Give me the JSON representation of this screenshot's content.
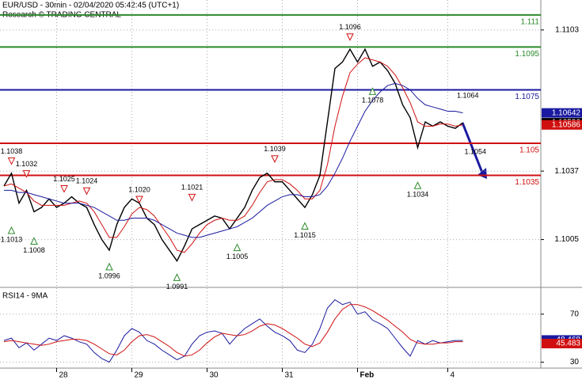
{
  "chart_data": [
    {
      "type": "line",
      "title": "EUR/USD - 30min - 02/04/2020 05:42:45 (UTC+1)",
      "subtitle": "Research © TRADING CENTRAL",
      "categories": [
        null,
        null,
        null,
        null,
        null,
        null,
        null,
        "28",
        null,
        null,
        null,
        null,
        null,
        null,
        null,
        null,
        null,
        "29",
        null,
        null,
        null,
        null,
        null,
        null,
        null,
        null,
        null,
        "30",
        null,
        null,
        null,
        null,
        null,
        null,
        null,
        null,
        null,
        "31",
        null,
        null,
        null,
        null,
        null,
        null,
        null,
        null,
        null,
        "Feb",
        null,
        null,
        null,
        null,
        null,
        null,
        null,
        null,
        null,
        null,
        null,
        "4",
        null,
        null
      ],
      "series": [
        {
          "color": "#000000",
          "last": 1.10596,
          "values": [
            1.103,
            1.1036,
            1.1022,
            1.1028,
            1.1018,
            1.102,
            1.1024,
            1.102,
            1.1022,
            1.1025,
            1.1022,
            1.102,
            1.1012,
            1.1005,
            1.1,
            1.1012,
            1.102,
            1.1024,
            1.1022,
            1.1015,
            1.1012,
            1.1005,
            1.1,
            1.0995,
            1.1002,
            1.101,
            1.1012,
            1.1014,
            1.1016,
            1.1015,
            1.101,
            1.1015,
            1.102,
            1.1028,
            1.1034,
            1.1036,
            1.1032,
            1.1032,
            1.1028,
            1.1024,
            1.102,
            1.1026,
            1.1035,
            1.106,
            1.1085,
            1.1088,
            1.1094,
            1.1088,
            1.1094,
            1.1086,
            1.1088,
            1.1084,
            1.1078,
            1.1068,
            1.1062,
            1.1048,
            1.106,
            1.1058,
            1.106,
            1.1058,
            1.1057,
            1.10596
          ]
        },
        {
          "color": "#d01010",
          "last": 1.10586,
          "values": [
            1.103,
            1.1031,
            1.1029,
            1.1027,
            1.1023,
            1.1021,
            1.1021,
            1.1021,
            1.1021,
            1.1022,
            1.1023,
            1.1022,
            1.1018,
            1.1012,
            1.1006,
            1.1006,
            1.1011,
            1.1017,
            1.102,
            1.1019,
            1.1016,
            1.1011,
            1.1006,
            1.1,
            1.0999,
            1.1003,
            1.1008,
            1.1012,
            1.1014,
            1.1015,
            1.1014,
            1.1014,
            1.1016,
            1.1021,
            1.1027,
            1.1032,
            1.1033,
            1.1033,
            1.1031,
            1.1028,
            1.1024,
            1.1024,
            1.1028,
            1.104,
            1.1058,
            1.1072,
            1.1083,
            1.1087,
            1.109,
            1.1089,
            1.1088,
            1.1086,
            1.1082,
            1.1076,
            1.1069,
            1.106,
            1.1058,
            1.1058,
            1.1059,
            1.1059,
            1.1058,
            1.10586
          ]
        },
        {
          "color": "#1a1aa0",
          "last": 1.10642,
          "values": [
            1.1028,
            1.1028,
            1.1027,
            1.1027,
            1.1026,
            1.1025,
            1.1024,
            1.1023,
            1.1022,
            1.1022,
            1.1022,
            1.1021,
            1.102,
            1.1018,
            1.1016,
            1.1014,
            1.1014,
            1.1015,
            1.1015,
            1.1015,
            1.1014,
            1.1012,
            1.101,
            1.1008,
            1.1007,
            1.1006,
            1.1006,
            1.1007,
            1.1008,
            1.1009,
            1.101,
            1.1011,
            1.1013,
            1.1015,
            1.1018,
            1.1021,
            1.1023,
            1.1025,
            1.1026,
            1.1026,
            1.1025,
            1.1025,
            1.1026,
            1.103,
            1.1036,
            1.1043,
            1.1051,
            1.1058,
            1.1065,
            1.107,
            1.1074,
            1.1077,
            1.1078,
            1.1077,
            1.1075,
            1.1071,
            1.1068,
            1.1067,
            1.1066,
            1.1065,
            1.1065,
            1.10642
          ]
        }
      ],
      "levels": [
        {
          "value": 1.111,
          "color": "#2a8a2a"
        },
        {
          "value": 1.1095,
          "color": "#2a8a2a"
        },
        {
          "value": 1.1075,
          "color": "#1a1aa0"
        },
        {
          "value": 1.105,
          "color": "#d01010"
        },
        {
          "value": 1.1035,
          "color": "#d01010"
        }
      ],
      "annotations": [
        {
          "value": 1.1038,
          "kind": "high",
          "at": 1
        },
        {
          "value": 1.1032,
          "kind": "high",
          "at": 3
        },
        {
          "value": 1.1025,
          "kind": "high",
          "at": 8
        },
        {
          "value": 1.1024,
          "kind": "high",
          "at": 11
        },
        {
          "value": 1.102,
          "label": "1.1020",
          "kind": "high",
          "at": 18
        },
        {
          "value": 1.1021,
          "kind": "high",
          "at": 25
        },
        {
          "value": 1.1039,
          "kind": "high",
          "at": 36
        },
        {
          "value": 1.1096,
          "kind": "high",
          "at": 46
        },
        {
          "value": 1.1064,
          "kind": "note-high",
          "at": 60
        },
        {
          "value": 1.1013,
          "kind": "low",
          "at": 1
        },
        {
          "value": 1.1008,
          "kind": "low",
          "at": 4
        },
        {
          "value": 1.0996,
          "kind": "low",
          "at": 14
        },
        {
          "value": 1.0991,
          "kind": "low",
          "at": 23
        },
        {
          "value": 1.1005,
          "kind": "low",
          "at": 31
        },
        {
          "value": 1.1015,
          "kind": "low",
          "at": 40
        },
        {
          "value": 1.1078,
          "kind": "low",
          "at": 49
        },
        {
          "value": 1.1034,
          "kind": "low",
          "at": 55
        },
        {
          "value": 1.1054,
          "kind": "note-low",
          "at": 61
        }
      ],
      "ylim": [
        1.0983,
        1.1117
      ],
      "yticks": [
        1.1103,
        1.1037,
        1.1005
      ],
      "grid": true
    },
    {
      "type": "line",
      "title": "RSI14 - 9MA",
      "series": [
        {
          "color": "#1a1aa0",
          "last": 48.468,
          "values": [
            48,
            50,
            42,
            46,
            40,
            45,
            50,
            48,
            52,
            50,
            47,
            45,
            38,
            33,
            30,
            40,
            52,
            58,
            55,
            48,
            45,
            40,
            36,
            32,
            35,
            45,
            52,
            55,
            56,
            54,
            45,
            52,
            58,
            62,
            66,
            60,
            55,
            52,
            48,
            40,
            38,
            45,
            58,
            75,
            82,
            78,
            80,
            70,
            72,
            65,
            62,
            58,
            50,
            42,
            35,
            48,
            45,
            48,
            46,
            47,
            48,
            48
          ]
        },
        {
          "color": "#d01010",
          "last": 45.483,
          "values": [
            47,
            48,
            47,
            46,
            45,
            44,
            45,
            47,
            48,
            49,
            49,
            48,
            45,
            41,
            37,
            36,
            40,
            47,
            52,
            53,
            51,
            47,
            43,
            38,
            35,
            36,
            40,
            46,
            51,
            54,
            53,
            52,
            53,
            56,
            60,
            62,
            61,
            58,
            54,
            50,
            45,
            43,
            46,
            55,
            66,
            74,
            78,
            78,
            76,
            73,
            69,
            65,
            60,
            55,
            49,
            46,
            45,
            45,
            46,
            46,
            47,
            47
          ]
        }
      ],
      "ylim": [
        25,
        91
      ],
      "yticks": [
        70,
        30
      ],
      "grid": true
    }
  ]
}
